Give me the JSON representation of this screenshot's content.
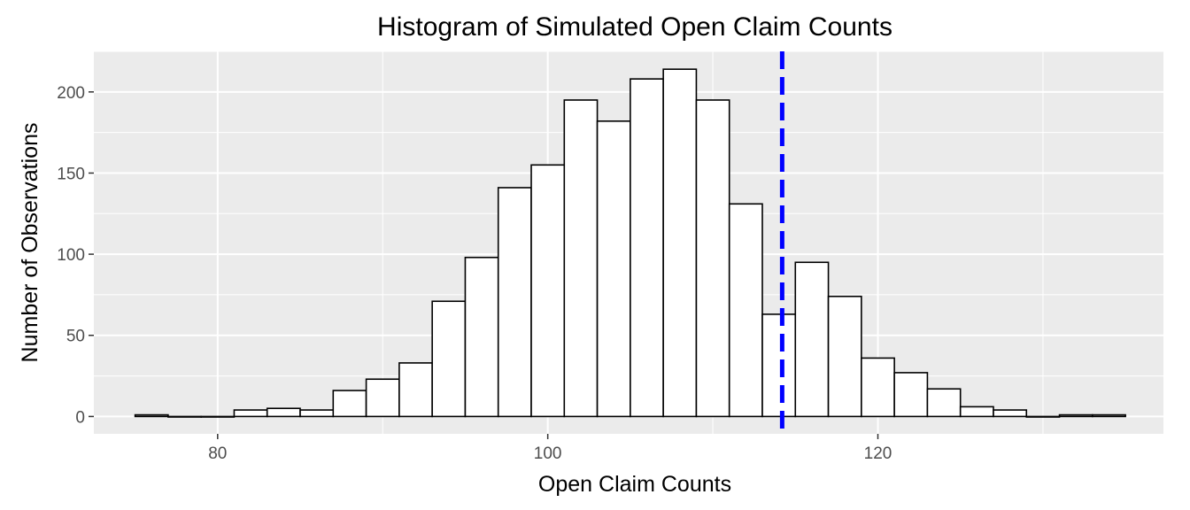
{
  "chart_data": {
    "type": "bar",
    "title": "Histogram of Simulated Open Claim Counts",
    "xlabel": "Open Claim Counts",
    "ylabel": "Number of Observations",
    "xlim": [
      72.5,
      137.3
    ],
    "ylim": [
      -10.7,
      225
    ],
    "x_ticks": [
      80,
      100,
      120
    ],
    "x_tick_labels": [
      "80",
      "100",
      "120"
    ],
    "y_ticks": [
      0,
      50,
      100,
      150,
      200
    ],
    "y_tick_labels": [
      "0",
      "50",
      "100",
      "150",
      "200"
    ],
    "grid": true,
    "bin_width": 2,
    "bins": [
      {
        "x": 76,
        "count": 1
      },
      {
        "x": 78,
        "count": 0
      },
      {
        "x": 80,
        "count": 0
      },
      {
        "x": 82,
        "count": 4
      },
      {
        "x": 84,
        "count": 5
      },
      {
        "x": 86,
        "count": 4
      },
      {
        "x": 88,
        "count": 16
      },
      {
        "x": 90,
        "count": 23
      },
      {
        "x": 92,
        "count": 33
      },
      {
        "x": 94,
        "count": 71
      },
      {
        "x": 96,
        "count": 98
      },
      {
        "x": 98,
        "count": 141
      },
      {
        "x": 100,
        "count": 155
      },
      {
        "x": 102,
        "count": 195
      },
      {
        "x": 104,
        "count": 182
      },
      {
        "x": 106,
        "count": 208
      },
      {
        "x": 108,
        "count": 214
      },
      {
        "x": 110,
        "count": 195
      },
      {
        "x": 112,
        "count": 131
      },
      {
        "x": 114,
        "count": 63
      },
      {
        "x": 116,
        "count": 95
      },
      {
        "x": 118,
        "count": 74
      },
      {
        "x": 120,
        "count": 36
      },
      {
        "x": 122,
        "count": 27
      },
      {
        "x": 124,
        "count": 17
      },
      {
        "x": 126,
        "count": 6
      },
      {
        "x": 128,
        "count": 4
      },
      {
        "x": 130,
        "count": 0
      },
      {
        "x": 132,
        "count": 1
      },
      {
        "x": 134,
        "count": 1
      }
    ],
    "reference_line": {
      "x": 114.2,
      "color": "#0000ff",
      "style": "dashed"
    },
    "colors": {
      "panel": "#ebebeb",
      "grid": "#ffffff",
      "bar_fill": "#ffffff",
      "bar_outline": "#000000"
    }
  }
}
